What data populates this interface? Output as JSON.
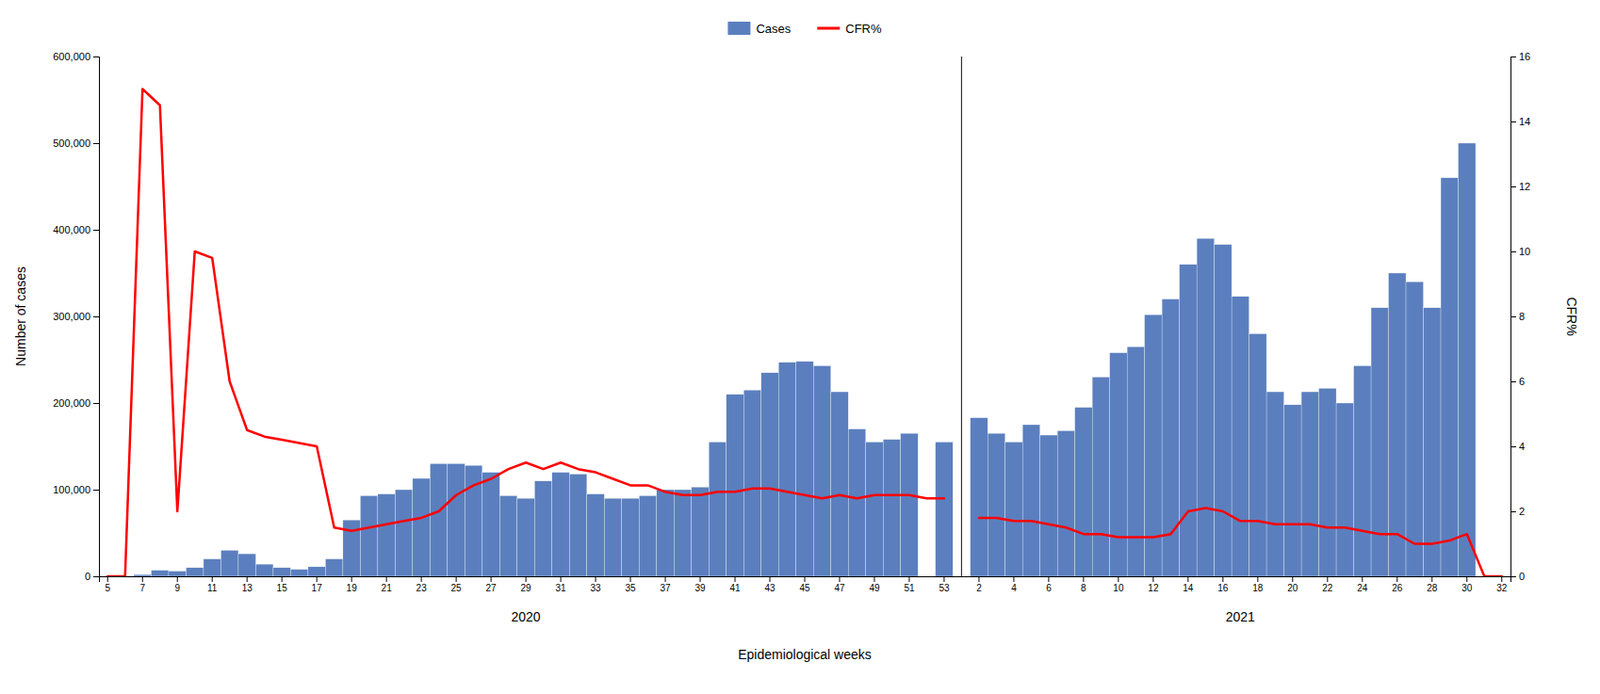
{
  "chart_data": {
    "type": "bar",
    "xlabel": "Epidemiological weeks",
    "ylabel": "Number of cases",
    "y2label": "CFR%",
    "annotations": [
      "2020",
      "2021"
    ],
    "categories": [
      "5",
      null,
      "7",
      null,
      "9",
      null,
      "11",
      null,
      "13",
      null,
      "15",
      null,
      "17",
      null,
      "19",
      null,
      "21",
      null,
      "23",
      null,
      "25",
      null,
      "27",
      null,
      "29",
      null,
      "31",
      null,
      "33",
      null,
      "35",
      null,
      "37",
      null,
      "39",
      null,
      "41",
      null,
      "43",
      null,
      "45",
      null,
      "47",
      null,
      "49",
      null,
      "51",
      null,
      "53",
      null,
      "2",
      null,
      "4",
      null,
      "6",
      null,
      "8",
      null,
      "10",
      null,
      "12",
      null,
      "14",
      null,
      "16",
      null,
      "18",
      null,
      "20",
      null,
      "22",
      null,
      "24",
      null,
      "26",
      null,
      "28",
      null,
      "30",
      null,
      "32"
    ],
    "series": [
      {
        "name": "Cases",
        "type": "bar",
        "color": "#5b7fbe",
        "values": [
          100,
          500,
          2000,
          7000,
          6000,
          10000,
          20000,
          30000,
          26000,
          14000,
          10000,
          8000,
          11000,
          20000,
          65000,
          93000,
          95000,
          100000,
          113000,
          130000,
          130000,
          128000,
          120000,
          93000,
          90000,
          110000,
          120000,
          118000,
          95000,
          90000,
          90000,
          93000,
          100000,
          100000,
          103000,
          155000,
          210000,
          215000,
          235000,
          247000,
          248000,
          243000,
          213000,
          170000,
          155000,
          158000,
          165000,
          0,
          155000,
          null,
          183000,
          165000,
          155000,
          175000,
          163000,
          168000,
          195000,
          230000,
          258000,
          265000,
          302000,
          320000,
          360000,
          390000,
          383000,
          323000,
          280000,
          213000,
          198000,
          213000,
          217000,
          200000,
          243000,
          310000,
          350000,
          340000,
          310000,
          460000,
          500000,
          0,
          0
        ]
      },
      {
        "name": "CFR%",
        "type": "line",
        "color": "#ff0000",
        "axis": "y2",
        "values": [
          0.0,
          0.0,
          15.0,
          14.5,
          2.0,
          10.0,
          9.8,
          6.0,
          4.5,
          4.3,
          4.2,
          4.1,
          4.0,
          1.5,
          1.4,
          1.5,
          1.6,
          1.7,
          1.8,
          2.0,
          2.5,
          2.8,
          3.0,
          3.3,
          3.5,
          3.3,
          3.5,
          3.3,
          3.2,
          3.0,
          2.8,
          2.8,
          2.6,
          2.5,
          2.5,
          2.6,
          2.6,
          2.7,
          2.7,
          2.6,
          2.5,
          2.4,
          2.5,
          2.4,
          2.5,
          2.5,
          2.5,
          2.4,
          2.4,
          null,
          1.8,
          1.8,
          1.7,
          1.7,
          1.6,
          1.5,
          1.3,
          1.3,
          1.2,
          1.2,
          1.2,
          1.3,
          2.0,
          2.1,
          2.0,
          1.7,
          1.7,
          1.6,
          1.6,
          1.6,
          1.5,
          1.5,
          1.4,
          1.3,
          1.3,
          1.0,
          1.0,
          1.1,
          1.3,
          0.0,
          0.0
        ]
      }
    ],
    "ylim": [
      0,
      600000
    ],
    "yticks": [
      0,
      {
        "value": 100000,
        "label": "100,000"
      },
      {
        "value": 200000,
        "label": "200,000"
      },
      {
        "value": 300000,
        "label": "300,000"
      },
      {
        "value": 400000,
        "label": "400,000"
      },
      {
        "value": 500000,
        "label": "500,000"
      },
      {
        "value": 600000,
        "label": "600,000"
      }
    ],
    "y2lim": [
      0,
      16
    ],
    "y2ticks": [
      0,
      2,
      4,
      6,
      8,
      10,
      12,
      14,
      16
    ],
    "legend": "top",
    "grid": false
  }
}
